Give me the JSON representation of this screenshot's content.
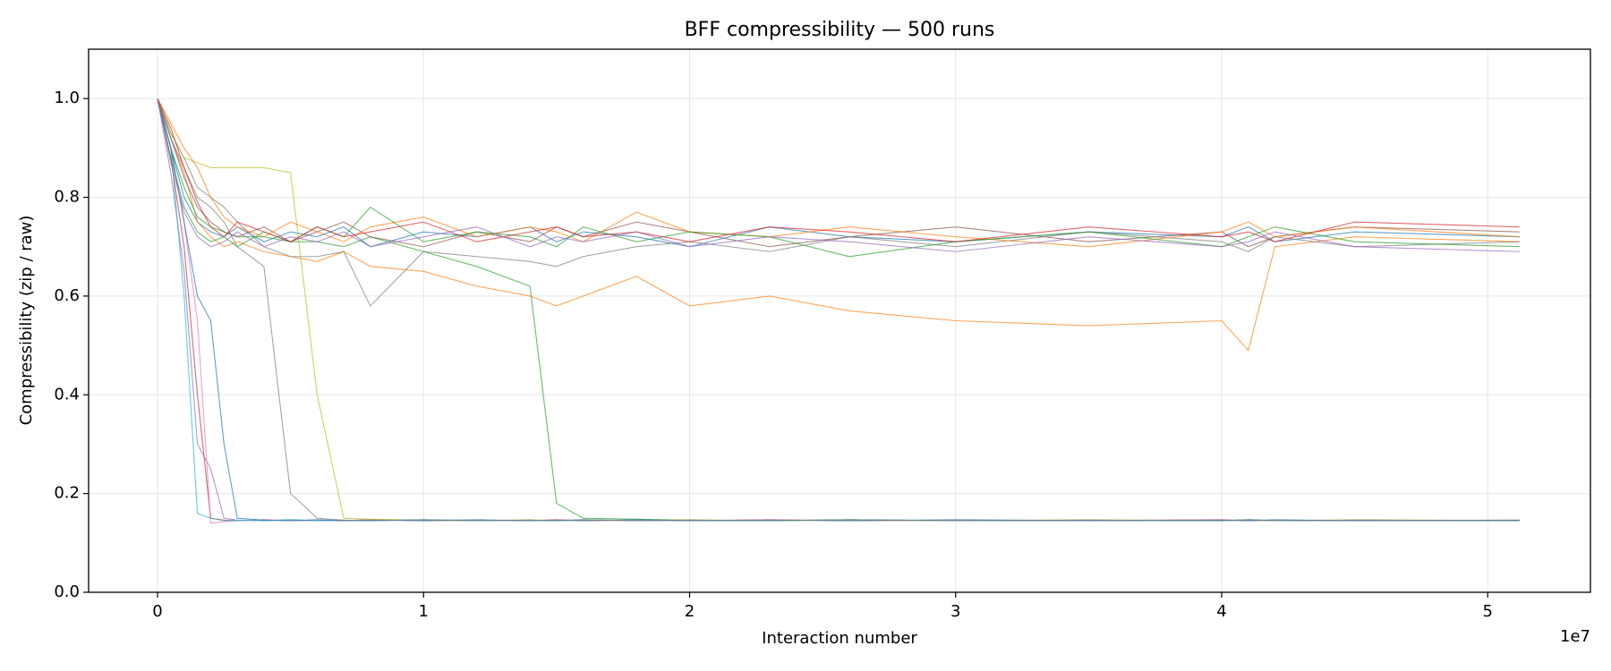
{
  "chart_data": {
    "type": "line",
    "title": "BFF compressibility — 500 runs",
    "x_label": "Interaction number",
    "y_label": "Compressibility (zip / raw)",
    "x_offset_label": "1e7",
    "grid": true,
    "xlim": [
      -2590000,
      53860000
    ],
    "ylim": [
      0,
      1.1
    ],
    "xticks": [
      0,
      {
        "value": 10000000,
        "label": "1"
      },
      {
        "value": 20000000,
        "label": "2"
      },
      {
        "value": 30000000,
        "label": "3"
      },
      {
        "value": 40000000,
        "label": "4"
      },
      {
        "value": 50000000,
        "label": "5"
      }
    ],
    "yticks": [
      {
        "value": 0,
        "label": "0.0"
      },
      0.2,
      0.4,
      0.6,
      0.8,
      {
        "value": 1,
        "label": "1.0"
      }
    ],
    "x": [
      0,
      500000,
      1000000,
      1500000,
      2000000,
      2500000,
      3000000,
      4000000,
      5000000,
      6000000,
      7000000,
      8000000,
      10000000,
      12000000,
      14000000,
      15000000,
      16000000,
      18000000,
      20000000,
      23000000,
      26000000,
      30000000,
      35000000,
      40000000,
      41000000,
      42000000,
      45000000,
      51200000
    ],
    "series": [
      {
        "color": "#1f77b4",
        "values": [
          1.0,
          0.9,
          0.8,
          0.75,
          0.73,
          0.72,
          0.74,
          0.71,
          0.73,
          0.72,
          0.74,
          0.7,
          0.73,
          0.72,
          0.74,
          0.71,
          0.73,
          0.72,
          0.7,
          0.74,
          0.72,
          0.71,
          0.73,
          0.72,
          0.74,
          0.71,
          0.73,
          0.72
        ]
      },
      {
        "color": "#ff7f0e",
        "values": [
          1.0,
          0.92,
          0.85,
          0.75,
          0.72,
          0.7,
          0.71,
          0.69,
          0.68,
          0.67,
          0.69,
          0.66,
          0.65,
          0.62,
          0.6,
          0.58,
          0.6,
          0.64,
          0.58,
          0.6,
          0.57,
          0.55,
          0.54,
          0.55,
          0.49,
          0.7,
          0.72,
          0.71
        ]
      },
      {
        "color": "#2ca02c",
        "values": [
          1.0,
          0.9,
          0.82,
          0.76,
          0.74,
          0.73,
          0.72,
          0.72,
          0.71,
          0.71,
          0.7,
          0.72,
          0.69,
          0.66,
          0.62,
          0.18,
          0.15,
          0.148,
          0.146,
          0.145,
          0.147,
          0.145,
          0.146,
          0.145,
          0.147,
          0.145,
          0.146,
          0.145
        ]
      },
      {
        "color": "#d62728",
        "values": [
          1.0,
          0.88,
          0.7,
          0.4,
          0.15,
          0.146,
          0.145,
          0.147,
          0.145,
          0.146,
          0.145,
          0.147,
          0.145,
          0.146,
          0.145,
          0.147,
          0.145,
          0.146,
          0.145,
          0.147,
          0.145,
          0.146,
          0.145,
          0.147,
          0.145,
          0.146,
          0.145,
          0.146
        ]
      },
      {
        "color": "#9467bd",
        "values": [
          1.0,
          0.85,
          0.65,
          0.3,
          0.25,
          0.15,
          0.146,
          0.145,
          0.147,
          0.145,
          0.146,
          0.145,
          0.147,
          0.145,
          0.146,
          0.145,
          0.147,
          0.145,
          0.146,
          0.145,
          0.147,
          0.145,
          0.146,
          0.145,
          0.147,
          0.145,
          0.146,
          0.145
        ]
      },
      {
        "color": "#8c564b",
        "values": [
          1.0,
          0.92,
          0.84,
          0.78,
          0.75,
          0.73,
          0.72,
          0.74,
          0.71,
          0.73,
          0.75,
          0.72,
          0.7,
          0.73,
          0.71,
          0.74,
          0.72,
          0.75,
          0.73,
          0.7,
          0.72,
          0.74,
          0.71,
          0.73,
          0.7,
          0.72,
          0.74,
          0.73
        ]
      },
      {
        "color": "#e377c2",
        "values": [
          1.0,
          0.9,
          0.75,
          0.55,
          0.14,
          0.143,
          0.145,
          0.147,
          0.145,
          0.146,
          0.145,
          0.147,
          0.145,
          0.146,
          0.145,
          0.147,
          0.145,
          0.146,
          0.145,
          0.147,
          0.145,
          0.146,
          0.145,
          0.147,
          0.145,
          0.146,
          0.145,
          0.146
        ]
      },
      {
        "color": "#7f7f7f",
        "values": [
          1.0,
          0.93,
          0.88,
          0.82,
          0.8,
          0.78,
          0.75,
          0.7,
          0.68,
          0.68,
          0.69,
          0.58,
          0.69,
          0.68,
          0.67,
          0.66,
          0.68,
          0.7,
          0.71,
          0.69,
          0.72,
          0.7,
          0.73,
          0.71,
          0.69,
          0.72,
          0.7,
          0.71
        ]
      },
      {
        "color": "#bcbd22",
        "values": [
          1.0,
          0.93,
          0.88,
          0.87,
          0.86,
          0.86,
          0.86,
          0.86,
          0.85,
          0.4,
          0.15,
          0.148,
          0.146,
          0.145,
          0.147,
          0.145,
          0.146,
          0.145,
          0.147,
          0.145,
          0.146,
          0.145,
          0.147,
          0.145,
          0.146,
          0.145,
          0.147,
          0.145
        ]
      },
      {
        "color": "#17becf",
        "values": [
          1.0,
          0.9,
          0.6,
          0.16,
          0.15,
          0.145,
          0.146,
          0.145,
          0.147,
          0.145,
          0.146,
          0.145,
          0.147,
          0.145,
          0.146,
          0.145,
          0.147,
          0.145,
          0.146,
          0.145,
          0.147,
          0.145,
          0.146,
          0.145,
          0.147,
          0.145,
          0.146,
          0.145
        ]
      },
      {
        "color": "#1f77b4",
        "values": [
          1.0,
          0.9,
          0.75,
          0.6,
          0.55,
          0.3,
          0.15,
          0.146,
          0.145,
          0.147,
          0.145,
          0.146,
          0.145,
          0.147,
          0.145,
          0.146,
          0.145,
          0.147,
          0.145,
          0.146,
          0.145,
          0.147,
          0.145,
          0.146,
          0.145,
          0.147,
          0.145,
          0.146
        ]
      },
      {
        "color": "#ff7f0e",
        "values": [
          1.0,
          0.95,
          0.9,
          0.86,
          0.8,
          0.76,
          0.74,
          0.72,
          0.75,
          0.73,
          0.71,
          0.74,
          0.76,
          0.72,
          0.74,
          0.73,
          0.71,
          0.77,
          0.73,
          0.72,
          0.74,
          0.72,
          0.7,
          0.73,
          0.75,
          0.72,
          0.74,
          0.72
        ]
      },
      {
        "color": "#2ca02c",
        "values": [
          1.0,
          0.88,
          0.78,
          0.73,
          0.71,
          0.72,
          0.7,
          0.73,
          0.71,
          0.74,
          0.72,
          0.78,
          0.71,
          0.73,
          0.72,
          0.7,
          0.74,
          0.71,
          0.73,
          0.72,
          0.68,
          0.71,
          0.73,
          0.7,
          0.72,
          0.74,
          0.71,
          0.7
        ]
      },
      {
        "color": "#7f7f7f",
        "values": [
          1.0,
          0.92,
          0.86,
          0.8,
          0.78,
          0.75,
          0.7,
          0.66,
          0.2,
          0.15,
          0.146,
          0.145,
          0.147,
          0.145,
          0.146,
          0.145,
          0.147,
          0.145,
          0.146,
          0.145,
          0.147,
          0.145,
          0.146,
          0.145,
          0.147,
          0.145,
          0.146,
          0.145
        ]
      },
      {
        "color": "#d62728",
        "values": [
          1.0,
          0.94,
          0.86,
          0.79,
          0.74,
          0.72,
          0.75,
          0.73,
          0.71,
          0.74,
          0.72,
          0.73,
          0.75,
          0.71,
          0.73,
          0.74,
          0.72,
          0.73,
          0.71,
          0.74,
          0.73,
          0.71,
          0.74,
          0.72,
          0.73,
          0.71,
          0.75,
          0.74
        ]
      },
      {
        "color": "#9467bd",
        "values": [
          1.0,
          0.87,
          0.77,
          0.72,
          0.7,
          0.71,
          0.73,
          0.7,
          0.72,
          0.71,
          0.73,
          0.7,
          0.72,
          0.74,
          0.7,
          0.72,
          0.71,
          0.73,
          0.7,
          0.72,
          0.71,
          0.69,
          0.72,
          0.7,
          0.71,
          0.73,
          0.7,
          0.69
        ]
      }
    ]
  }
}
